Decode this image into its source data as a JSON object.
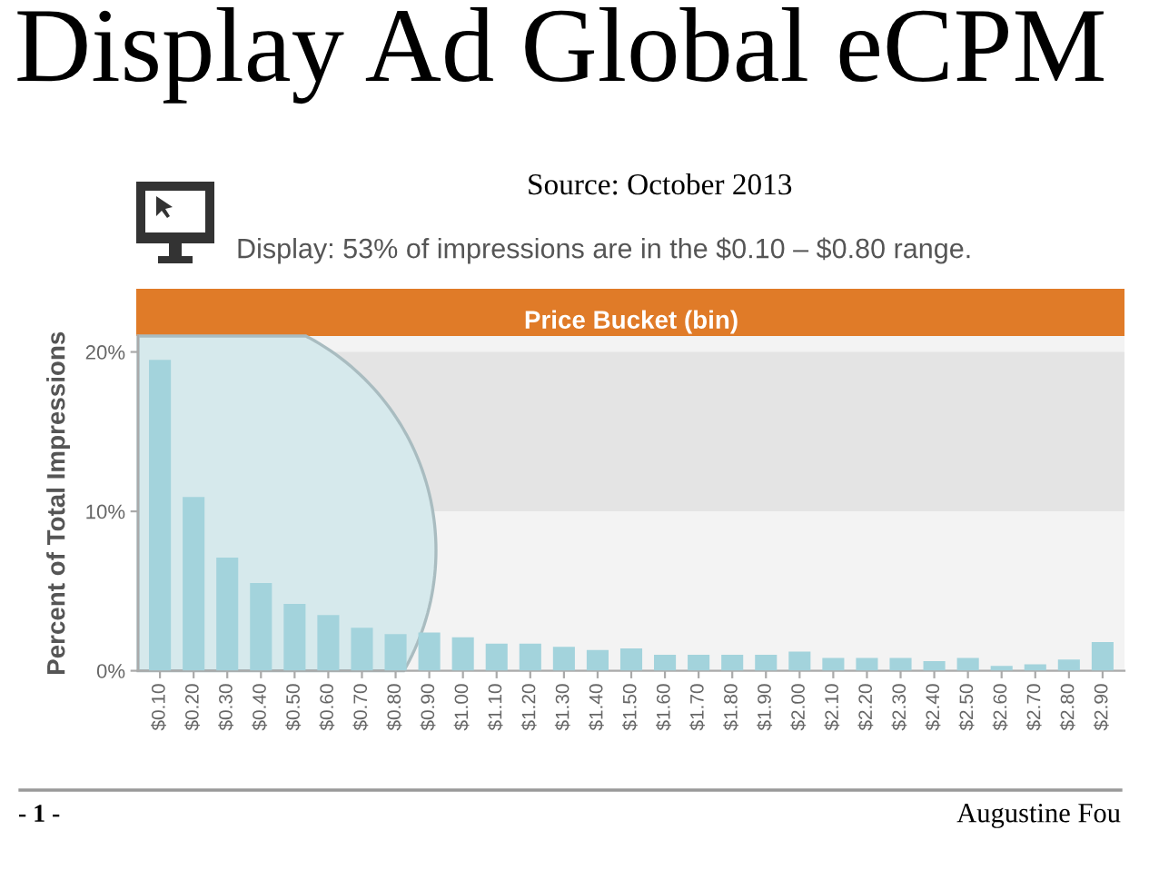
{
  "chart_data": {
    "type": "bar",
    "title": "Display Ad Global eCPM",
    "subtitle": "Display: 53% of impressions are in the $0.10 – $0.80 range.",
    "xlabel": "Price Bucket (bin)",
    "ylabel": "Percent of Total Impressions",
    "categories": [
      "$0.10",
      "$0.20",
      "$0.30",
      "$0.40",
      "$0.50",
      "$0.60",
      "$0.70",
      "$0.80",
      "$0.90",
      "$1.00",
      "$1.10",
      "$1.20",
      "$1.30",
      "$1.40",
      "$1.50",
      "$1.60",
      "$1.70",
      "$1.80",
      "$1.90",
      "$2.00",
      "$2.10",
      "$2.20",
      "$2.30",
      "$2.40",
      "$2.50",
      "$2.60",
      "$2.70",
      "$2.80",
      "$2.90"
    ],
    "values": [
      19.5,
      10.9,
      7.1,
      5.5,
      4.2,
      3.5,
      2.7,
      2.3,
      2.4,
      2.1,
      1.7,
      1.7,
      1.5,
      1.3,
      1.4,
      1.0,
      1.0,
      1.0,
      1.0,
      1.2,
      0.8,
      0.8,
      0.8,
      0.6,
      0.8,
      0.3,
      0.4,
      0.7,
      1.8
    ],
    "color": "#a3d3dc",
    "ylim": [
      0,
      21
    ],
    "yticks": [
      {
        "value": 0,
        "label": "0%"
      },
      {
        "value": 10,
        "label": "10%"
      },
      {
        "value": 20,
        "label": "20%"
      }
    ],
    "bands": [
      {
        "axis": "y",
        "from": 10,
        "to": 20,
        "color": "#e4e4e4"
      }
    ],
    "grid": false,
    "annotations": [
      "Source: October 2013",
      "- 1 -",
      "Augustine Fou"
    ]
  }
}
